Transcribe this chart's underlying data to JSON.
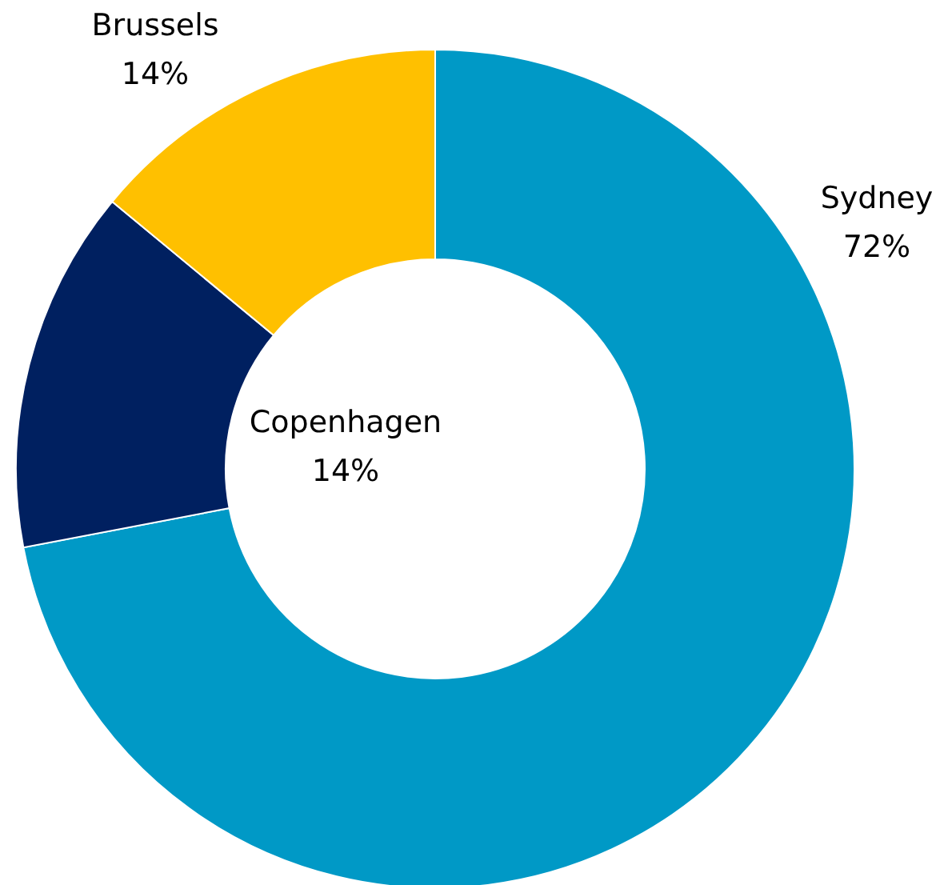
{
  "chart_data": {
    "type": "donut",
    "categories": [
      "Sydney",
      "Copenhagen",
      "Brussels"
    ],
    "values": [
      72,
      14,
      14
    ],
    "value_labels": [
      "72%",
      "14%",
      "14%"
    ],
    "colors": [
      "#0099c6",
      "#002060",
      "#ffc000"
    ]
  }
}
